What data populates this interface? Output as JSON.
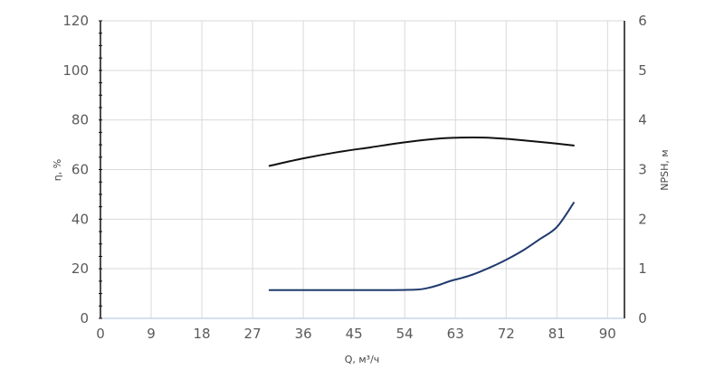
{
  "chart_data": {
    "type": "line",
    "title": "",
    "xlabel": "Q, м³/ч",
    "ylabel_left": "η, %",
    "ylabel_right": "NPSH, м",
    "x_ticks": [
      "0",
      "9",
      "18",
      "27",
      "36",
      "45",
      "54",
      "63",
      "72",
      "81",
      "90"
    ],
    "y_left_ticks": [
      "0",
      "20",
      "40",
      "60",
      "80",
      "100",
      "120"
    ],
    "y_right_ticks": [
      "0",
      "1",
      "2",
      "3",
      "4",
      "5",
      "6"
    ],
    "xlim": [
      0,
      93
    ],
    "ylim_left": [
      0,
      120
    ],
    "ylim_right": [
      0,
      6
    ],
    "grid": true,
    "series": [
      {
        "axis": "left",
        "color": "#111111",
        "x": [
          30,
          36,
          42,
          48,
          54,
          60,
          64,
          68,
          72,
          76,
          80,
          84
        ],
        "y": [
          61.5,
          64.5,
          67,
          69,
          71,
          72.5,
          72.9,
          72.9,
          72.4,
          71.6,
          70.7,
          69.7
        ]
      },
      {
        "axis": "right",
        "color": "#1f3a6e",
        "x": [
          30,
          40,
          50,
          56,
          58,
          60,
          62,
          64,
          66,
          68,
          70,
          72,
          75,
          78,
          81,
          84
        ],
        "y": [
          0.57,
          0.57,
          0.57,
          0.58,
          0.61,
          0.67,
          0.75,
          0.81,
          0.88,
          0.97,
          1.07,
          1.18,
          1.37,
          1.6,
          1.84,
          2.33
        ]
      }
    ]
  }
}
